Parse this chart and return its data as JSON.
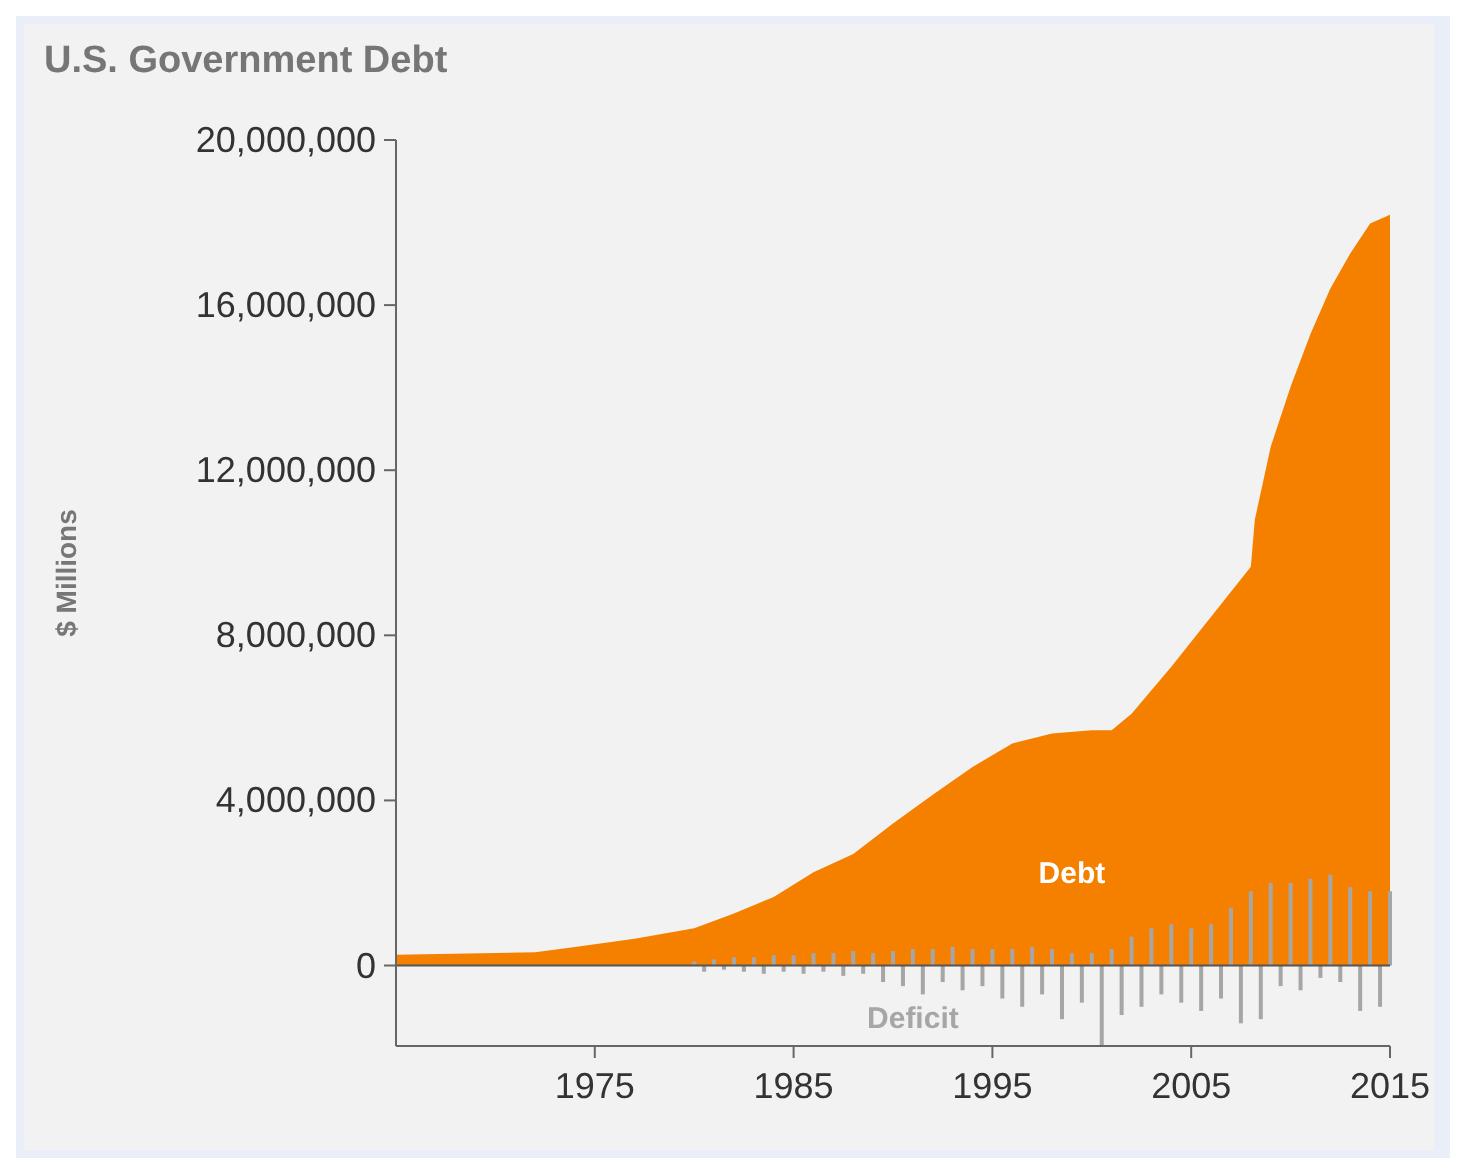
{
  "chart_data": {
    "type": "area",
    "title": "U.S. Government Debt",
    "ylabel": "$ Millions",
    "xlim": [
      1965,
      2015
    ],
    "xticks": [
      1975,
      1985,
      1995,
      2005,
      2015
    ],
    "ylim": [
      -1950000,
      20000000
    ],
    "yticks": [
      {
        "value": 0,
        "label": "0"
      },
      {
        "value": 4000000,
        "label": "4,000,000"
      },
      {
        "value": 8000000,
        "label": "8,000,000"
      },
      {
        "value": 12000000,
        "label": "12,000,000"
      },
      {
        "value": 16000000,
        "label": "16,000,000"
      },
      {
        "value": 20000000,
        "label": "20,000,000"
      }
    ],
    "grid": false,
    "legend": false,
    "ref_lines": [
      {
        "axis": "y",
        "value": 0,
        "color": "#555555"
      }
    ],
    "series": [
      {
        "name": "Debt",
        "color": "#f58000",
        "x": [
          1965,
          1972,
          1974,
          1977,
          1980,
          1982,
          1984,
          1986,
          1988,
          1990,
          1992,
          1994,
          1996,
          1998,
          2000,
          2001,
          2002,
          2004,
          2006,
          2008,
          2008.2,
          2009,
          2010,
          2011,
          2012,
          2013,
          2014,
          2015
        ],
        "values": [
          260000,
          320000,
          450000,
          650000,
          900000,
          1260000,
          1660000,
          2260000,
          2700000,
          3440000,
          4140000,
          4810000,
          5380000,
          5620000,
          5700000,
          5700000,
          6100000,
          7240000,
          8450000,
          9660000,
          10800000,
          12570000,
          14020000,
          15300000,
          16400000,
          17250000,
          17980000,
          18190000
        ]
      },
      {
        "name": "Deficit",
        "type": "bar",
        "color": "#a6a6a6",
        "x": [
          1980,
          1980.5,
          1981,
          1981.5,
          1982,
          1982.5,
          1983,
          1983.5,
          1984,
          1984.5,
          1985,
          1985.5,
          1986,
          1986.5,
          1987,
          1987.5,
          1988,
          1988.5,
          1989,
          1989.5,
          1990,
          1990.5,
          1991,
          1991.5,
          1992,
          1992.5,
          1993,
          1993.5,
          1994,
          1994.5,
          1995,
          1995.5,
          1996,
          1996.5,
          1997,
          1997.5,
          1998,
          1998.5,
          1999,
          1999.5,
          2000,
          2000.5,
          2001,
          2001.5,
          2002,
          2002.5,
          2003,
          2003.5,
          2004,
          2004.5,
          2005,
          2005.5,
          2006,
          2006.5,
          2007,
          2007.5,
          2008,
          2008.5,
          2009,
          2009.5,
          2010,
          2010.5,
          2011,
          2011.5,
          2012,
          2012.5,
          2013,
          2013.5,
          2014,
          2014.5,
          2015
        ],
        "values": [
          100000,
          -150000,
          150000,
          -100000,
          200000,
          -150000,
          200000,
          -200000,
          250000,
          -150000,
          250000,
          -200000,
          300000,
          -150000,
          300000,
          -250000,
          350000,
          -200000,
          300000,
          -400000,
          350000,
          -500000,
          400000,
          -700000,
          400000,
          -400000,
          450000,
          -600000,
          400000,
          -500000,
          400000,
          -800000,
          400000,
          -1000000,
          450000,
          -700000,
          400000,
          -1300000,
          300000,
          -900000,
          300000,
          -1950000,
          400000,
          -1200000,
          700000,
          -1000000,
          900000,
          -700000,
          1000000,
          -900000,
          900000,
          -1100000,
          1000000,
          -800000,
          1400000,
          -1400000,
          1800000,
          -1300000,
          2000000,
          -500000,
          2000000,
          -600000,
          2100000,
          -300000,
          2200000,
          -400000,
          1900000,
          -1100000,
          1800000,
          -1000000,
          1800000
        ]
      }
    ]
  }
}
